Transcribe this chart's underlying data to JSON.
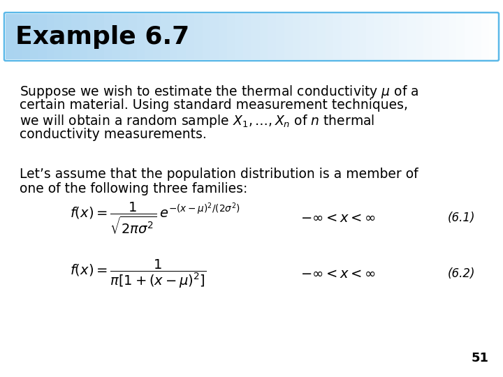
{
  "title": "Example 6.7",
  "title_fontsize": 26,
  "title_bg_color_left": "#aad4f0",
  "title_bg_color_right": "#ffffff",
  "title_border_color": "#5bb8e8",
  "body_bg_color": "#ffffff",
  "text_color": "#000000",
  "page_number": "51",
  "para1_lines": [
    "Suppose we wish to estimate the thermal conductivity $\\mu$ of a",
    "certain material. Using standard measurement techniques,",
    "we will obtain a random sample $X_1, \\ldots , X_n$ of $n$ thermal",
    "conductivity measurements."
  ],
  "para2_lines": [
    "Let’s assume that the population distribution is a member of",
    "one of the following three families:"
  ],
  "eq1_lhs": "$f(x) = \\dfrac{1}{\\sqrt{2\\pi\\sigma^2}}\\, e^{-(x-\\mu)^2/(2\\sigma^2)}$",
  "eq1_range": "$-\\infty < x < \\infty$",
  "eq1_label": "(6.1)",
  "eq2_lhs": "$f(x) = \\dfrac{1}{\\pi[1 + (x - \\mu)^2]}$",
  "eq2_range": "$-\\infty < x < \\infty$",
  "eq2_label": "(6.2)",
  "text_fontsize": 13.5,
  "eq_fontsize": 14,
  "label_fontsize": 12,
  "page_fontsize": 13
}
